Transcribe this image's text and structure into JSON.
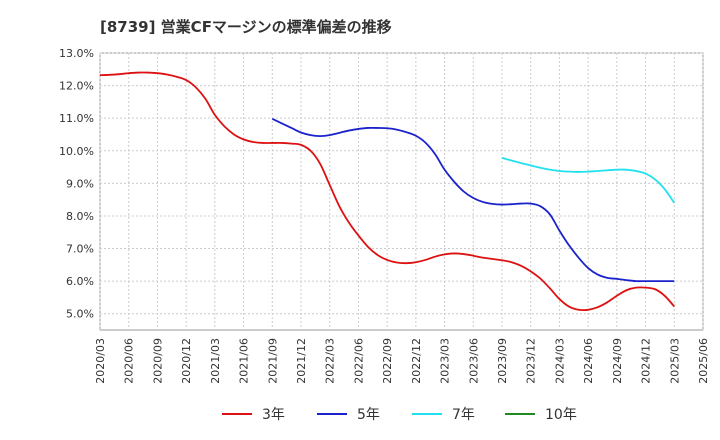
{
  "chart_data": {
    "type": "line",
    "title": "[8739]  営業CFマージンの標準偏差の推移",
    "xlabel": "",
    "ylabel": "",
    "ylim": [
      4.5,
      13.0
    ],
    "yticks": [
      "13.0%",
      "12.0%",
      "11.0%",
      "10.0%",
      "9.0%",
      "8.0%",
      "7.0%",
      "6.0%",
      "5.0%"
    ],
    "x_categories": [
      "2020/03",
      "2020/06",
      "2020/09",
      "2020/12",
      "2021/03",
      "2021/06",
      "2021/09",
      "2021/12",
      "2022/03",
      "2022/06",
      "2022/09",
      "2022/12",
      "2023/03",
      "2023/06",
      "2023/09",
      "2023/12",
      "2024/03",
      "2024/06",
      "2024/09",
      "2024/12",
      "2025/03",
      "2025/06"
    ],
    "grid": true,
    "legend_position": "bottom",
    "series": [
      {
        "name": "3年",
        "color": "#dd1111",
        "points": [
          [
            "2020/03",
            12.32
          ],
          [
            "2020/04",
            12.33
          ],
          [
            "2020/05",
            12.35
          ],
          [
            "2020/06",
            12.38
          ],
          [
            "2020/07",
            12.4
          ],
          [
            "2020/08",
            12.4
          ],
          [
            "2020/09",
            12.38
          ],
          [
            "2020/10",
            12.34
          ],
          [
            "2020/11",
            12.27
          ],
          [
            "2020/12",
            12.17
          ],
          [
            "2021/01",
            11.95
          ],
          [
            "2021/02",
            11.6
          ],
          [
            "2021/03",
            11.1
          ],
          [
            "2021/04",
            10.75
          ],
          [
            "2021/05",
            10.5
          ],
          [
            "2021/06",
            10.35
          ],
          [
            "2021/07",
            10.27
          ],
          [
            "2021/08",
            10.24
          ],
          [
            "2021/09",
            10.24
          ],
          [
            "2021/10",
            10.24
          ],
          [
            "2021/11",
            10.22
          ],
          [
            "2021/12",
            10.18
          ],
          [
            "2022/01",
            10.0
          ],
          [
            "2022/02",
            9.6
          ],
          [
            "2022/03",
            8.95
          ],
          [
            "2022/04",
            8.3
          ],
          [
            "2022/05",
            7.8
          ],
          [
            "2022/06",
            7.4
          ],
          [
            "2022/07",
            7.05
          ],
          [
            "2022/08",
            6.8
          ],
          [
            "2022/09",
            6.65
          ],
          [
            "2022/10",
            6.57
          ],
          [
            "2022/11",
            6.55
          ],
          [
            "2022/12",
            6.58
          ],
          [
            "2023/01",
            6.65
          ],
          [
            "2023/02",
            6.75
          ],
          [
            "2023/03",
            6.82
          ],
          [
            "2023/04",
            6.85
          ],
          [
            "2023/05",
            6.83
          ],
          [
            "2023/06",
            6.78
          ],
          [
            "2023/07",
            6.72
          ],
          [
            "2023/08",
            6.68
          ],
          [
            "2023/09",
            6.64
          ],
          [
            "2023/10",
            6.58
          ],
          [
            "2023/11",
            6.47
          ],
          [
            "2023/12",
            6.3
          ],
          [
            "2024/01",
            6.08
          ],
          [
            "2024/02",
            5.78
          ],
          [
            "2024/03",
            5.45
          ],
          [
            "2024/04",
            5.22
          ],
          [
            "2024/05",
            5.12
          ],
          [
            "2024/06",
            5.12
          ],
          [
            "2024/07",
            5.2
          ],
          [
            "2024/08",
            5.35
          ],
          [
            "2024/09",
            5.55
          ],
          [
            "2024/10",
            5.72
          ],
          [
            "2024/11",
            5.8
          ],
          [
            "2024/12",
            5.8
          ],
          [
            "2025/01",
            5.75
          ],
          [
            "2025/02",
            5.55
          ],
          [
            "2025/03",
            5.22
          ]
        ]
      },
      {
        "name": "5年",
        "color": "#1a22cc",
        "points": [
          [
            "2021/09",
            10.98
          ],
          [
            "2021/10",
            10.84
          ],
          [
            "2021/11",
            10.7
          ],
          [
            "2021/12",
            10.56
          ],
          [
            "2022/01",
            10.48
          ],
          [
            "2022/02",
            10.45
          ],
          [
            "2022/03",
            10.48
          ],
          [
            "2022/04",
            10.55
          ],
          [
            "2022/05",
            10.62
          ],
          [
            "2022/06",
            10.67
          ],
          [
            "2022/07",
            10.7
          ],
          [
            "2022/08",
            10.7
          ],
          [
            "2022/09",
            10.69
          ],
          [
            "2022/10",
            10.65
          ],
          [
            "2022/11",
            10.57
          ],
          [
            "2022/12",
            10.46
          ],
          [
            "2023/01",
            10.25
          ],
          [
            "2023/02",
            9.9
          ],
          [
            "2023/03",
            9.42
          ],
          [
            "2023/04",
            9.05
          ],
          [
            "2023/05",
            8.75
          ],
          [
            "2023/06",
            8.55
          ],
          [
            "2023/07",
            8.43
          ],
          [
            "2023/08",
            8.37
          ],
          [
            "2023/09",
            8.35
          ],
          [
            "2023/10",
            8.36
          ],
          [
            "2023/11",
            8.38
          ],
          [
            "2023/12",
            8.38
          ],
          [
            "2024/01",
            8.3
          ],
          [
            "2024/02",
            8.05
          ],
          [
            "2024/03",
            7.55
          ],
          [
            "2024/04",
            7.1
          ],
          [
            "2024/05",
            6.72
          ],
          [
            "2024/06",
            6.4
          ],
          [
            "2024/07",
            6.2
          ],
          [
            "2024/08",
            6.1
          ],
          [
            "2024/09",
            6.07
          ],
          [
            "2024/10",
            6.03
          ],
          [
            "2024/11",
            6.0
          ],
          [
            "2024/12",
            6.0
          ],
          [
            "2025/01",
            6.0
          ],
          [
            "2025/02",
            6.0
          ],
          [
            "2025/03",
            6.0
          ]
        ]
      },
      {
        "name": "7年",
        "color": "#22e0ee",
        "points": [
          [
            "2023/09",
            9.78
          ],
          [
            "2023/10",
            9.7
          ],
          [
            "2023/11",
            9.62
          ],
          [
            "2023/12",
            9.55
          ],
          [
            "2024/01",
            9.48
          ],
          [
            "2024/02",
            9.42
          ],
          [
            "2024/03",
            9.38
          ],
          [
            "2024/04",
            9.36
          ],
          [
            "2024/05",
            9.35
          ],
          [
            "2024/06",
            9.36
          ],
          [
            "2024/07",
            9.38
          ],
          [
            "2024/08",
            9.4
          ],
          [
            "2024/09",
            9.42
          ],
          [
            "2024/10",
            9.42
          ],
          [
            "2024/11",
            9.38
          ],
          [
            "2024/12",
            9.3
          ],
          [
            "2025/01",
            9.12
          ],
          [
            "2025/02",
            8.82
          ],
          [
            "2025/03",
            8.4
          ]
        ]
      },
      {
        "name": "10年",
        "color": "#228822",
        "points": []
      }
    ]
  }
}
